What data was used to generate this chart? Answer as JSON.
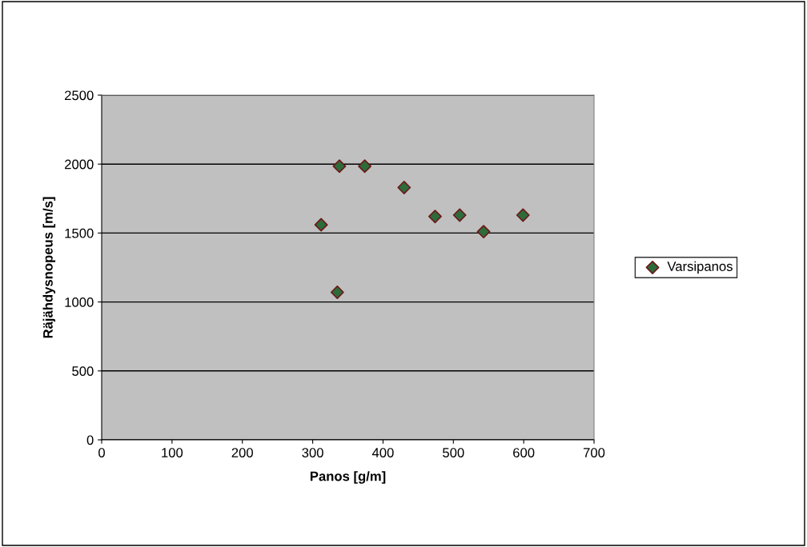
{
  "chart_data": {
    "type": "scatter",
    "xlabel": "Panos [g/m]",
    "ylabel": "Räjähdysnopeus [m/s]",
    "x": [
      312,
      335,
      338,
      374,
      430,
      474,
      509,
      543,
      599
    ],
    "series": [
      {
        "name": "Varsipanos",
        "color": "#2e6b3a",
        "values": [
          1560,
          1070,
          1985,
          1985,
          1830,
          1620,
          1630,
          1510,
          1630
        ]
      }
    ],
    "xlim": [
      0,
      700
    ],
    "xticks": [
      0,
      100,
      200,
      300,
      400,
      500,
      600,
      700
    ],
    "ylim": [
      0,
      2500
    ],
    "yticks": [
      0,
      500,
      1000,
      1500,
      2000,
      2500
    ],
    "grid": "y",
    "legend": "right",
    "marker": "diamond"
  }
}
